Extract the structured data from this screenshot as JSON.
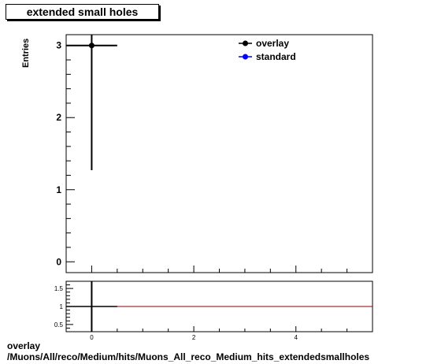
{
  "chart_data": [
    {
      "type": "scatter",
      "title": "extended small holes",
      "ylabel": "Entries",
      "xlabel": "",
      "xlim": [
        -0.5,
        5.5
      ],
      "ylim": [
        -0.15,
        3.15
      ],
      "x_ticks": [
        0,
        2,
        4
      ],
      "y_ticks": [
        0,
        1,
        2,
        3
      ],
      "grid": false,
      "legend_position": "top-right",
      "series": [
        {
          "name": "overlay",
          "color": "#000000",
          "points": [
            {
              "x": 0,
              "y": 3,
              "xerr": 0.5,
              "yerr": 1.73
            }
          ]
        },
        {
          "name": "standard",
          "color": "#0000ff",
          "points": []
        }
      ]
    },
    {
      "type": "line",
      "title": "",
      "xlim": [
        -0.5,
        5.5
      ],
      "ylim": [
        0.3,
        1.7
      ],
      "x_ticks": [
        0,
        2,
        4
      ],
      "y_ticks": [
        0.5,
        1,
        1.5
      ],
      "y_tick_labels": [
        "0.5",
        "1",
        "1.5"
      ],
      "reference_line": {
        "y": 1,
        "color": "#8b0000"
      },
      "points": [
        {
          "x": 0,
          "y": 1,
          "xerr": 0.5
        }
      ]
    }
  ],
  "footer": {
    "line1": "overlay",
    "line2": "/Muons/All/reco/Medium/hits/Muons_All_reco_Medium_hits_extendedsmallholes"
  }
}
